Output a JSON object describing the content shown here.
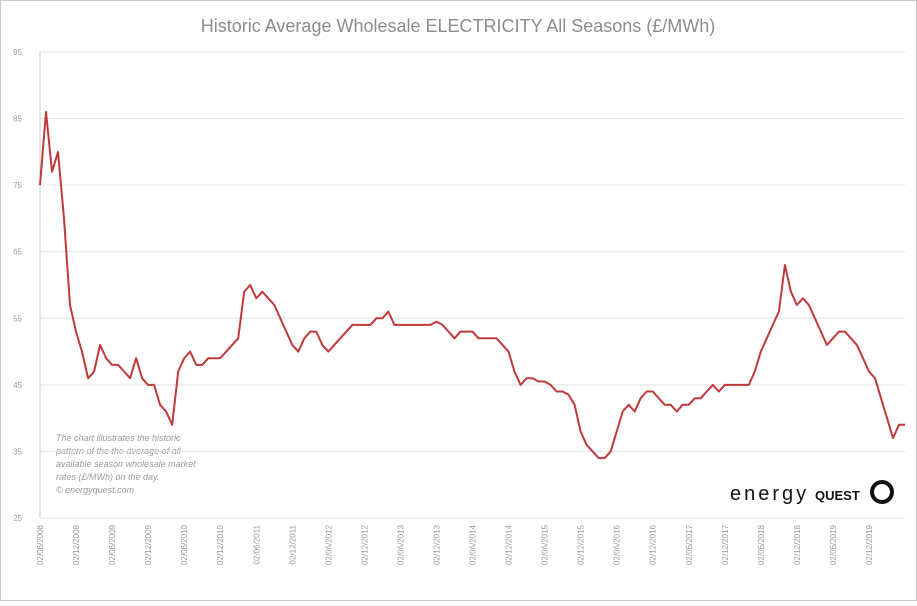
{
  "chart_data": {
    "type": "line",
    "title": "Historic Average Wholesale ELECTRICITY All Seasons (£/MWh)",
    "annotation": [
      "The chart illustrates the historic",
      "pattern of the the average of all",
      "available season wholesale market",
      "rates (£/MWh) on the day.",
      "© energyquest.com"
    ],
    "logo": [
      "energy",
      "QUEST"
    ],
    "categories": [
      "02/06/2008",
      null,
      null,
      null,
      null,
      null,
      "02/12/2008",
      null,
      null,
      null,
      null,
      null,
      "02/06/2009",
      null,
      null,
      null,
      null,
      null,
      "02/12/2009",
      null,
      null,
      null,
      null,
      null,
      "02/06/2010",
      null,
      null,
      null,
      null,
      null,
      "02/12/2010",
      null,
      null,
      null,
      null,
      null,
      "02/06/2011",
      null,
      null,
      null,
      null,
      null,
      "02/12/2011",
      null,
      null,
      null,
      null,
      null,
      "02/06/2012",
      null,
      null,
      null,
      null,
      null,
      "02/12/2012",
      null,
      null,
      null,
      null,
      null,
      "02/06/2013",
      null,
      null,
      null,
      null,
      null,
      "02/12/2013",
      null,
      null,
      null,
      null,
      null,
      "02/06/2014",
      null,
      null,
      null,
      null,
      null,
      "02/12/2014",
      null,
      null,
      null,
      null,
      null,
      "02/06/2015",
      null,
      null,
      null,
      null,
      null,
      "02/12/2015",
      null,
      null,
      null,
      null,
      null,
      "02/06/2016",
      null,
      null,
      null,
      null,
      null,
      "02/12/2016",
      null,
      null,
      null,
      null,
      null,
      "02/06/2017",
      null,
      null,
      null,
      null,
      null,
      "02/12/2017",
      null,
      null,
      null,
      null,
      null,
      "02/06/2018",
      null,
      null,
      null,
      null,
      null,
      "02/12/2018",
      null,
      null,
      null,
      null,
      null,
      "02/06/2019",
      null,
      null,
      null,
      null,
      null,
      "02/12/2019",
      null,
      null,
      null,
      null,
      null,
      null
    ],
    "series": [
      {
        "color": "#c0393b",
        "values": [
          75,
          86,
          77,
          80,
          70,
          57,
          53,
          50,
          46,
          47,
          51,
          49,
          48,
          48,
          47,
          46,
          49,
          46,
          45,
          45,
          42,
          41,
          39,
          47,
          49,
          50,
          48,
          48,
          49,
          49,
          49,
          50,
          51,
          52,
          59,
          60,
          58,
          59,
          58,
          57,
          55,
          53,
          51,
          50,
          52,
          53,
          53,
          51,
          50,
          51,
          52,
          53,
          54,
          54,
          54,
          54,
          55,
          55,
          56,
          54,
          54,
          54,
          54,
          54,
          54,
          54,
          54.5,
          54,
          53,
          52,
          53,
          53,
          53,
          52,
          52,
          52,
          52,
          51,
          50,
          47,
          45,
          46,
          46,
          45.5,
          45.5,
          45,
          44,
          44,
          43.5,
          42,
          38,
          36,
          35,
          34,
          34,
          35,
          38,
          41,
          42,
          41,
          43,
          44,
          44,
          43,
          42,
          42,
          41,
          42,
          42,
          43,
          43,
          44,
          45,
          44,
          45,
          45,
          45,
          45,
          45,
          47,
          50,
          52,
          54,
          56,
          63,
          59,
          57,
          58,
          57,
          55,
          53,
          51,
          52,
          53,
          53,
          52,
          51,
          49,
          47,
          46,
          43,
          40,
          37,
          39,
          39
        ]
      }
    ],
    "ylim": [
      25,
      95
    ],
    "yticks": [
      25,
      35,
      45,
      55,
      65,
      75,
      85,
      95
    ],
    "grid": true
  }
}
